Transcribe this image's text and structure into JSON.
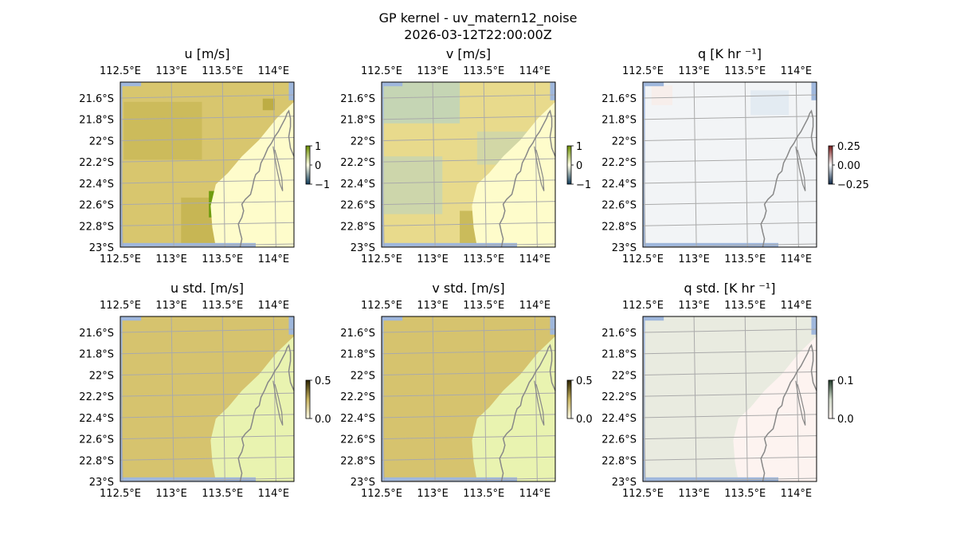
{
  "figure": {
    "title_line1": "GP kernel - uv_matern12_noise",
    "title_line2": "2026-03-12T22:00:00Z"
  },
  "colors": {
    "land_pale": "#fefccb",
    "ocean_edge": "#9fb7dc",
    "coast": "#888888",
    "grid": "#aaaaaa",
    "u_field": "#d8c66e",
    "u_field_dark": "#b6a63a",
    "u_peak": "#6f9c0f",
    "v_field_yellow": "#e8da8c",
    "v_field_teal": "#b7d3c5",
    "q_field": "#f2f4f6",
    "std_uv_field": "#d6c36e",
    "std_uv_shore": "#e9f3b0",
    "std_q_field": "#e9ebe0",
    "std_q_shore": "#fdf3f0"
  },
  "chart_data": [
    {
      "type": "heatmap",
      "panel": "u",
      "title": "u [m/s]",
      "variable": "u",
      "units": "m/s",
      "xticks": [
        "112.5°E",
        "113°E",
        "113.5°E",
        "114°E"
      ],
      "xtick_values": [
        112.5,
        113.0,
        113.5,
        114.0
      ],
      "yticks": [
        "21.6°S",
        "21.8°S",
        "22°S",
        "22.2°S",
        "22.4°S",
        "22.6°S",
        "22.8°S",
        "23°S"
      ],
      "ytick_values": [
        -21.6,
        -21.8,
        -22.0,
        -22.2,
        -22.4,
        -22.6,
        -22.8,
        -23.0
      ],
      "xlim": [
        112.5,
        114.2
      ],
      "ylim": [
        -23.0,
        -21.45
      ],
      "colorbar": {
        "ticks": [
          "1",
          "0",
          "−1"
        ],
        "range": [
          -1,
          1
        ]
      },
      "grid": true
    },
    {
      "type": "heatmap",
      "panel": "v",
      "title": "v [m/s]",
      "variable": "v",
      "units": "m/s",
      "xticks": [
        "112.5°E",
        "113°E",
        "113.5°E",
        "114°E"
      ],
      "xtick_values": [
        112.5,
        113.0,
        113.5,
        114.0
      ],
      "yticks": [
        "21.6°S",
        "21.8°S",
        "22°S",
        "22.2°S",
        "22.4°S",
        "22.6°S",
        "22.8°S",
        "23°S"
      ],
      "ytick_values": [
        -21.6,
        -21.8,
        -22.0,
        -22.2,
        -22.4,
        -22.6,
        -22.8,
        -23.0
      ],
      "xlim": [
        112.5,
        114.2
      ],
      "ylim": [
        -23.0,
        -21.45
      ],
      "colorbar": {
        "ticks": [
          "1",
          "0",
          "−1"
        ],
        "range": [
          -1,
          1
        ]
      },
      "grid": true
    },
    {
      "type": "heatmap",
      "panel": "q",
      "title": "q [K hr ⁻¹]",
      "variable": "q",
      "units": "K hr⁻¹",
      "xticks": [
        "112.5°E",
        "113°E",
        "113.5°E",
        "114°E"
      ],
      "xtick_values": [
        112.5,
        113.0,
        113.5,
        114.0
      ],
      "yticks": [
        "21.6°S",
        "21.8°S",
        "22°S",
        "22.2°S",
        "22.4°S",
        "22.6°S",
        "22.8°S",
        "23°S"
      ],
      "ytick_values": [
        -21.6,
        -21.8,
        -22.0,
        -22.2,
        -22.4,
        -22.6,
        -22.8,
        -23.0
      ],
      "xlim": [
        112.5,
        114.2
      ],
      "ylim": [
        -23.0,
        -21.45
      ],
      "colorbar": {
        "ticks": [
          "0.25",
          "0.00",
          "−0.25"
        ],
        "range": [
          -0.3,
          0.3
        ]
      },
      "grid": true
    },
    {
      "type": "heatmap",
      "panel": "u_std",
      "title": "u std. [m/s]",
      "variable": "u std.",
      "units": "m/s",
      "xticks": [
        "112.5°E",
        "113°E",
        "113.5°E",
        "114°E"
      ],
      "xtick_values": [
        112.5,
        113.0,
        113.5,
        114.0
      ],
      "yticks": [
        "21.6°S",
        "21.8°S",
        "22°S",
        "22.2°S",
        "22.4°S",
        "22.6°S",
        "22.8°S",
        "23°S"
      ],
      "ytick_values": [
        -21.6,
        -21.8,
        -22.0,
        -22.2,
        -22.4,
        -22.6,
        -22.8,
        -23.0
      ],
      "xlim": [
        112.5,
        114.2
      ],
      "ylim": [
        -23.0,
        -21.45
      ],
      "colorbar": {
        "ticks": [
          "0.5",
          "0.0"
        ],
        "range": [
          0,
          0.5
        ]
      },
      "grid": true
    },
    {
      "type": "heatmap",
      "panel": "v_std",
      "title": "v std. [m/s]",
      "variable": "v std.",
      "units": "m/s",
      "xticks": [
        "112.5°E",
        "113°E",
        "113.5°E",
        "114°E"
      ],
      "xtick_values": [
        112.5,
        113.0,
        113.5,
        114.0
      ],
      "yticks": [
        "21.6°S",
        "21.8°S",
        "22°S",
        "22.2°S",
        "22.4°S",
        "22.6°S",
        "22.8°S",
        "23°S"
      ],
      "ytick_values": [
        -21.6,
        -21.8,
        -22.0,
        -22.2,
        -22.4,
        -22.6,
        -22.8,
        -23.0
      ],
      "xlim": [
        112.5,
        114.2
      ],
      "ylim": [
        -23.0,
        -21.45
      ],
      "colorbar": {
        "ticks": [
          "0.5",
          "0.0"
        ],
        "range": [
          0,
          0.5
        ]
      },
      "grid": true
    },
    {
      "type": "heatmap",
      "panel": "q_std",
      "title": "q std. [K hr ⁻¹]",
      "variable": "q std.",
      "units": "K hr⁻¹",
      "xticks": [
        "112.5°E",
        "113°E",
        "113.5°E",
        "114°E"
      ],
      "xtick_values": [
        112.5,
        113.0,
        113.5,
        114.0
      ],
      "yticks": [
        "21.6°S",
        "21.8°S",
        "22°S",
        "22.2°S",
        "22.4°S",
        "22.6°S",
        "22.8°S",
        "23°S"
      ],
      "ytick_values": [
        -21.6,
        -21.8,
        -22.0,
        -22.2,
        -22.4,
        -22.6,
        -22.8,
        -23.0
      ],
      "xlim": [
        112.5,
        114.2
      ],
      "ylim": [
        -23.0,
        -21.45
      ],
      "colorbar": {
        "ticks": [
          "0.1",
          "0.0"
        ],
        "range": [
          0,
          0.12
        ]
      },
      "grid": true
    }
  ]
}
